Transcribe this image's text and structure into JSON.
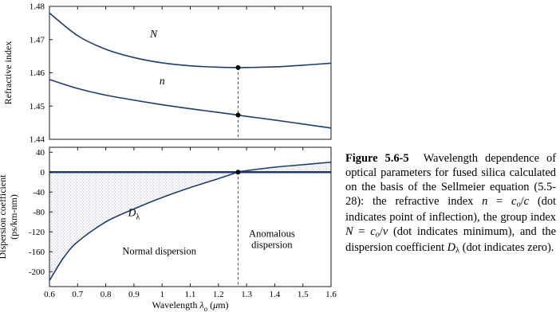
{
  "colors": {
    "curve": "#223a6b",
    "frame": "#1a1a1a",
    "marker": "#000000",
    "dash": "#444444",
    "shade_dot": "#b2b8c0",
    "text": "#000000"
  },
  "chart_data": [
    {
      "type": "line",
      "title": "Refractive index n and group index N of fused silica vs wavelength",
      "ylabel_lines": [
        "Refractive index"
      ],
      "xlim": [
        0.6,
        1.6
      ],
      "ylim": [
        1.44,
        1.48
      ],
      "yticks": [
        1.48,
        1.47,
        1.46,
        1.45,
        1.44
      ],
      "ytick_labels": [
        "1.48",
        "1.47",
        "1.46",
        "1.45",
        "1.44"
      ],
      "xticks": [
        0.6,
        0.7,
        0.8,
        0.9,
        1.0,
        1.1,
        1.2,
        1.3,
        1.4,
        1.5,
        1.6
      ],
      "xtick_labels": null,
      "grid": false,
      "legend": "none",
      "series": [
        {
          "name": "N",
          "label_at": [
            0.97,
            1.4707
          ],
          "x": [
            0.6,
            0.7,
            0.8,
            0.9,
            1.0,
            1.1,
            1.2,
            1.27,
            1.3,
            1.4,
            1.5,
            1.6
          ],
          "y": [
            1.478,
            1.4712,
            1.4671,
            1.4646,
            1.463,
            1.4621,
            1.4617,
            1.4616,
            1.4616,
            1.4618,
            1.4623,
            1.4629
          ]
        },
        {
          "name": "n",
          "label_at": [
            1.0,
            1.4565
          ],
          "x": [
            0.6,
            0.7,
            0.8,
            0.9,
            1.0,
            1.1,
            1.2,
            1.27,
            1.3,
            1.4,
            1.5,
            1.6
          ],
          "y": [
            1.458,
            1.4553,
            1.4533,
            1.4518,
            1.4504,
            1.4492,
            1.4481,
            1.4473,
            1.4469,
            1.4458,
            1.4446,
            1.4434
          ]
        }
      ],
      "markers": [
        {
          "x": 1.27,
          "y": 1.4616
        },
        {
          "x": 1.27,
          "y": 1.4473
        }
      ],
      "dashed_line": {
        "x": 1.27,
        "y1": 1.4616,
        "y2": 1.44
      }
    },
    {
      "type": "line",
      "title": "Dispersion coefficient of fused silica vs wavelength",
      "ylabel_lines": [
        "Dispersion coefficient",
        "(ps/km-nm)"
      ],
      "xlabel_runs": [
        {
          "t": "Wavelength "
        },
        {
          "t": "λ",
          "s": "i"
        },
        {
          "t": "o",
          "s": "i sub"
        },
        {
          "t": " ("
        },
        {
          "t": "μ",
          "s": "i"
        },
        {
          "t": "m)"
        }
      ],
      "xlim": [
        0.6,
        1.6
      ],
      "ylim": [
        -230,
        50
      ],
      "yticks": [
        40,
        0,
        -40,
        -80,
        -120,
        -160,
        -200
      ],
      "ytick_labels": [
        "40",
        "0",
        "-40",
        "-80",
        "-120",
        "-160",
        "-200"
      ],
      "xticks": [
        0.6,
        0.7,
        0.8,
        0.9,
        1.0,
        1.1,
        1.2,
        1.3,
        1.4,
        1.5,
        1.6
      ],
      "xtick_labels": [
        "0.6",
        "0.7",
        "0.8",
        "0.9",
        "1",
        "1.1",
        "1.2",
        "1.3",
        "1.4",
        "1.5",
        "1.6"
      ],
      "grid": false,
      "legend": "none",
      "zero_line": true,
      "shade_between_zero": true,
      "series": [
        {
          "name": "D_lambda",
          "label_runs": [
            {
              "t": "D",
              "s": "i"
            },
            {
              "t": "λ",
              "s": "sub"
            }
          ],
          "label_at": [
            0.9,
            -88
          ],
          "x": [
            0.6,
            0.65,
            0.7,
            0.8,
            0.9,
            1.0,
            1.1,
            1.2,
            1.27,
            1.3,
            1.4,
            1.5,
            1.6
          ],
          "y": [
            -218,
            -172,
            -140,
            -100,
            -74,
            -51,
            -31,
            -13,
            0,
            3,
            10,
            15,
            20
          ]
        }
      ],
      "markers": [
        {
          "x": 1.27,
          "y": 0
        }
      ],
      "dashed_line": {
        "x": 1.27,
        "y1": 0,
        "y2": -230
      },
      "annotations": [
        {
          "x": 0.99,
          "y": -165,
          "text": "Normal dispersion"
        },
        {
          "x": 1.39,
          "y": -130,
          "lines": [
            "Anomalous",
            "dispersion"
          ]
        }
      ]
    }
  ],
  "caption": {
    "runs": [
      {
        "t": "Figure 5.6-5  ",
        "s": "b"
      },
      {
        "t": "Wavelength dependence of optical parameters for fused silica calculated on the basis of the Sellmeier equation (5.5-28): the refractive index ",
        "s": ""
      },
      {
        "t": "n",
        "s": "i"
      },
      {
        "t": " = ",
        "s": ""
      },
      {
        "t": "c",
        "s": "i"
      },
      {
        "t": "o",
        "s": "i sub"
      },
      {
        "t": "/",
        "s": ""
      },
      {
        "t": "c",
        "s": "i"
      },
      {
        "t": " (dot indicates point of inflection), the group index ",
        "s": ""
      },
      {
        "t": "N",
        "s": "i"
      },
      {
        "t": " = ",
        "s": ""
      },
      {
        "t": "c",
        "s": "i"
      },
      {
        "t": "o",
        "s": "i sub"
      },
      {
        "t": "/",
        "s": ""
      },
      {
        "t": "v",
        "s": "i"
      },
      {
        "t": " (dot indicates minimum), and the dispersion coefficient ",
        "s": ""
      },
      {
        "t": "D",
        "s": "i"
      },
      {
        "t": "λ",
        "s": "sub"
      },
      {
        "t": " (dot indicates zero).",
        "s": ""
      }
    ]
  }
}
